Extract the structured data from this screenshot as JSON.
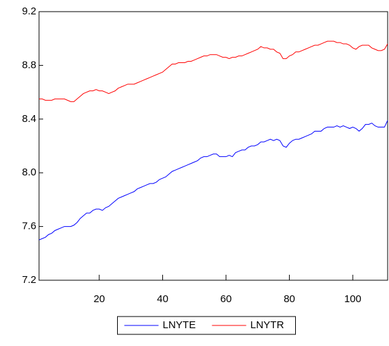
{
  "chart_data": {
    "type": "line",
    "x": [
      1,
      2,
      3,
      4,
      5,
      6,
      7,
      8,
      9,
      10,
      11,
      12,
      13,
      14,
      15,
      16,
      17,
      18,
      19,
      20,
      21,
      22,
      23,
      24,
      25,
      26,
      27,
      28,
      29,
      30,
      31,
      32,
      33,
      34,
      35,
      36,
      37,
      38,
      39,
      40,
      41,
      42,
      43,
      44,
      45,
      46,
      47,
      48,
      49,
      50,
      51,
      52,
      53,
      54,
      55,
      56,
      57,
      58,
      59,
      60,
      61,
      62,
      63,
      64,
      65,
      66,
      67,
      68,
      69,
      70,
      71,
      72,
      73,
      74,
      75,
      76,
      77,
      78,
      79,
      80,
      81,
      82,
      83,
      84,
      85,
      86,
      87,
      88,
      89,
      90,
      91,
      92,
      93,
      94,
      95,
      96,
      97,
      98,
      99,
      100,
      101,
      102,
      103,
      104,
      105,
      106,
      107,
      108,
      109,
      110,
      111
    ],
    "series": [
      {
        "name": "LNYTE",
        "color": "#0000ff",
        "values": [
          7.5,
          7.51,
          7.52,
          7.54,
          7.55,
          7.57,
          7.58,
          7.59,
          7.6,
          7.6,
          7.6,
          7.61,
          7.63,
          7.66,
          7.68,
          7.7,
          7.7,
          7.72,
          7.73,
          7.73,
          7.72,
          7.74,
          7.75,
          7.77,
          7.79,
          7.81,
          7.82,
          7.83,
          7.84,
          7.85,
          7.86,
          7.88,
          7.89,
          7.9,
          7.91,
          7.92,
          7.92,
          7.93,
          7.95,
          7.96,
          7.97,
          7.99,
          8.01,
          8.02,
          8.03,
          8.04,
          8.05,
          8.06,
          8.07,
          8.08,
          8.09,
          8.11,
          8.12,
          8.12,
          8.13,
          8.14,
          8.14,
          8.12,
          8.12,
          8.12,
          8.13,
          8.12,
          8.15,
          8.16,
          8.17,
          8.17,
          8.19,
          8.2,
          8.2,
          8.21,
          8.23,
          8.23,
          8.24,
          8.25,
          8.24,
          8.25,
          8.24,
          8.2,
          8.19,
          8.22,
          8.24,
          8.25,
          8.25,
          8.26,
          8.27,
          8.28,
          8.29,
          8.31,
          8.31,
          8.31,
          8.33,
          8.34,
          8.34,
          8.34,
          8.35,
          8.34,
          8.35,
          8.34,
          8.33,
          8.34,
          8.33,
          8.31,
          8.33,
          8.36,
          8.36,
          8.37,
          8.35,
          8.34,
          8.34,
          8.34,
          8.39
        ]
      },
      {
        "name": "LNYTR",
        "color": "#ff0000",
        "values": [
          8.55,
          8.55,
          8.54,
          8.54,
          8.54,
          8.55,
          8.55,
          8.55,
          8.55,
          8.54,
          8.53,
          8.53,
          8.55,
          8.57,
          8.59,
          8.6,
          8.61,
          8.61,
          8.62,
          8.61,
          8.61,
          8.6,
          8.59,
          8.6,
          8.61,
          8.63,
          8.64,
          8.65,
          8.66,
          8.66,
          8.66,
          8.67,
          8.68,
          8.69,
          8.7,
          8.71,
          8.72,
          8.73,
          8.74,
          8.75,
          8.77,
          8.79,
          8.81,
          8.81,
          8.82,
          8.82,
          8.82,
          8.83,
          8.83,
          8.84,
          8.85,
          8.86,
          8.87,
          8.87,
          8.88,
          8.88,
          8.88,
          8.87,
          8.86,
          8.86,
          8.85,
          8.86,
          8.86,
          8.87,
          8.87,
          8.88,
          8.89,
          8.9,
          8.91,
          8.92,
          8.94,
          8.93,
          8.93,
          8.92,
          8.92,
          8.9,
          8.89,
          8.85,
          8.85,
          8.87,
          8.88,
          8.9,
          8.9,
          8.91,
          8.92,
          8.93,
          8.94,
          8.95,
          8.95,
          8.96,
          8.97,
          8.98,
          8.98,
          8.98,
          8.97,
          8.97,
          8.96,
          8.96,
          8.95,
          8.93,
          8.92,
          8.94,
          8.95,
          8.95,
          8.95,
          8.93,
          8.92,
          8.91,
          8.91,
          8.92,
          8.96
        ]
      }
    ],
    "xlim": [
      1,
      111
    ],
    "xticks": [
      20,
      40,
      60,
      80,
      100
    ],
    "ylim": [
      7.2,
      9.2
    ],
    "yticks": [
      7.2,
      7.6,
      {
        "value": 8,
        "label": "8.0"
      },
      8.4,
      8.8,
      9.2
    ],
    "legend": "bottom"
  }
}
